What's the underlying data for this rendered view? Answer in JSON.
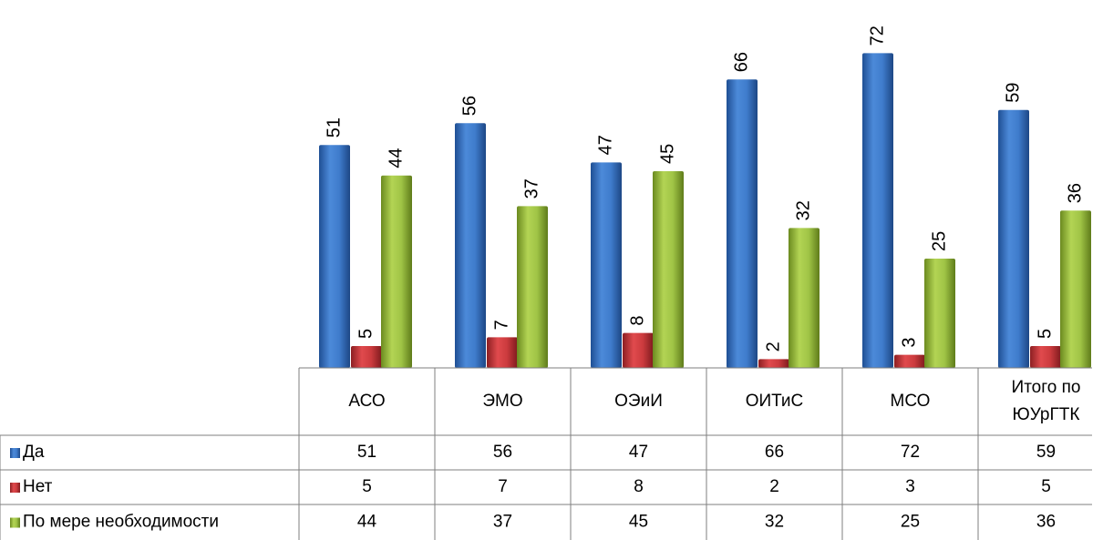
{
  "chart_data": {
    "type": "bar",
    "categories": [
      [
        "АСО"
      ],
      [
        "ЭМО"
      ],
      [
        "ОЭиИ"
      ],
      [
        "ОИТиС"
      ],
      [
        "МСО"
      ],
      [
        "Итого по",
        "ЮУрГТК"
      ]
    ],
    "series": [
      {
        "name": "Да",
        "values": [
          51,
          56,
          47,
          66,
          72,
          59
        ],
        "color": "#3a75c4"
      },
      {
        "name": "Нет",
        "values": [
          5,
          7,
          8,
          2,
          3,
          5
        ],
        "color": "#c0393b"
      },
      {
        "name": "По мере необходимости",
        "values": [
          44,
          37,
          45,
          32,
          25,
          36
        ],
        "color": "#95b83a"
      }
    ],
    "ylim": [
      0,
      80
    ],
    "data_table": true,
    "data_labels": "rotated"
  }
}
